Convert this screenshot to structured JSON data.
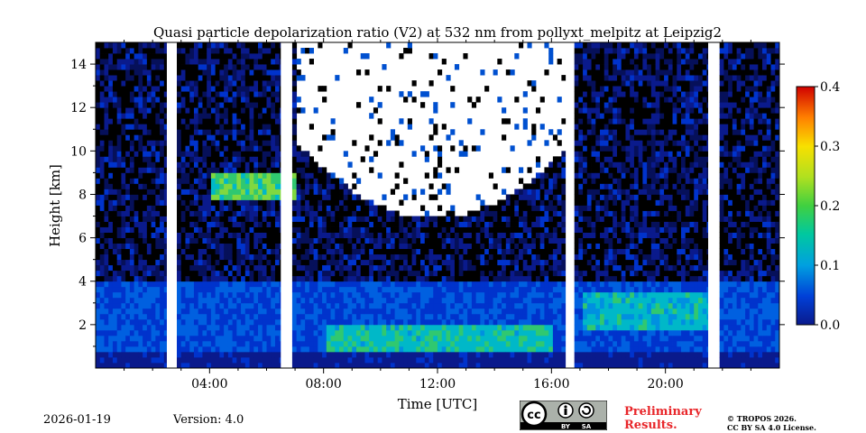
{
  "chart_data": {
    "type": "heatmap",
    "title": "Quasi particle depolarization ratio (V2) at 532 nm from pollyxt_melpitz at Leipzig2",
    "xlabel": "Time [UTC]",
    "ylabel": "Height [km]",
    "xlim": [
      0,
      24
    ],
    "ylim": [
      0,
      15
    ],
    "x_ticks": [
      4,
      8,
      12,
      16,
      20
    ],
    "x_tick_labels": [
      "04:00",
      "08:00",
      "12:00",
      "16:00",
      "20:00"
    ],
    "x_minor_ticks": [
      1,
      2,
      3,
      5,
      6,
      7,
      9,
      10,
      11,
      13,
      14,
      15,
      17,
      18,
      19,
      21,
      22,
      23
    ],
    "y_ticks": [
      2,
      4,
      6,
      8,
      10,
      12,
      14
    ],
    "y_tick_labels": [
      "2",
      "4",
      "6",
      "8",
      "10",
      "12",
      "14"
    ],
    "colorbar": {
      "range": [
        0.0,
        0.4
      ],
      "ticks": [
        0.0,
        0.1,
        0.2,
        0.3,
        0.4
      ],
      "tick_labels": [
        "0.0",
        "0.1",
        "0.2",
        "0.3",
        "0.4"
      ],
      "colormap": [
        "#0a1a8c",
        "#0033cc",
        "#0080e0",
        "#00c0c0",
        "#30d060",
        "#a0e020",
        "#f0f000",
        "#ffa000",
        "#ff4000",
        "#d00000"
      ]
    },
    "data_gaps_hours": [
      [
        2.5,
        2.8
      ],
      [
        6.5,
        6.8
      ],
      [
        16.5,
        16.8
      ],
      [
        21.5,
        21.8
      ]
    ],
    "features": [
      {
        "name": "boundary layer depolarization",
        "time_range": [
          0,
          24
        ],
        "height_range_km": [
          0,
          4
        ],
        "value_range": [
          0.05,
          0.2
        ]
      },
      {
        "name": "elevated aerosol layer",
        "time_range": [
          4,
          7
        ],
        "height_range_km": [
          7.5,
          9
        ],
        "value_range": [
          0.15,
          0.25
        ]
      },
      {
        "name": "daytime no-signal region",
        "time_range": [
          7,
          16.5
        ],
        "height_range_km": [
          7,
          15
        ],
        "value_range": null
      }
    ]
  },
  "footer": {
    "date": "2026-01-19",
    "version": "Version: 4.0",
    "preliminary_line1": "Preliminary",
    "preliminary_line2": "Results.",
    "copyright_line1": "© TROPOS 2026.",
    "copyright_line2": "CC BY SA 4.0 License.",
    "license_badge_text": [
      "BY",
      "SA"
    ],
    "license_badge_icon": "cc-by-sa-icon"
  }
}
